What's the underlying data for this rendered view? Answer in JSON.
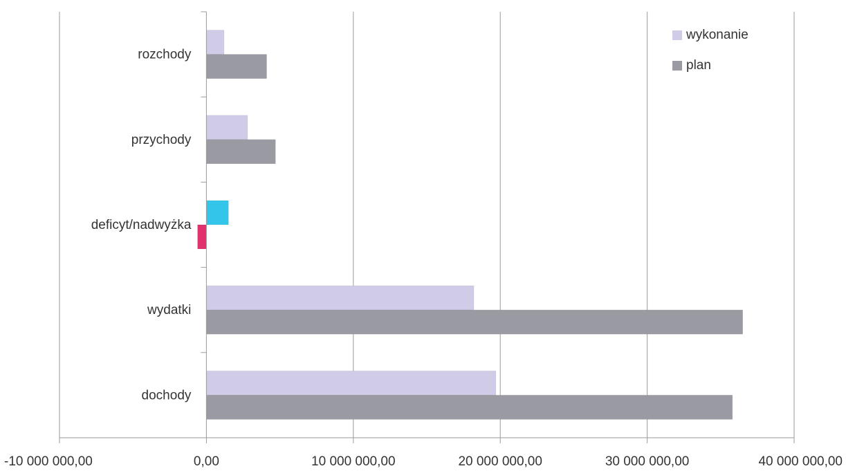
{
  "chart_data": {
    "type": "bar",
    "orientation": "horizontal",
    "categories": [
      "rozchody",
      "przychody",
      "deficyt/nadwyżka",
      "wydatki",
      "dochody"
    ],
    "series": [
      {
        "name": "wykonanie",
        "color": "#d0cce8",
        "values": [
          1200000,
          2800000,
          1500000,
          18200000,
          19700000
        ]
      },
      {
        "name": "plan",
        "color": "#9a9aa2",
        "values": [
          4100000,
          4700000,
          -600000,
          36500000,
          35800000
        ]
      }
    ],
    "special_colors": {
      "deficyt/nadwyżka": {
        "wykonanie": "#33c6ea",
        "plan": "#e0336e"
      }
    },
    "xlim": [
      -10000000,
      40000000
    ],
    "x_ticks": [
      -10000000,
      0,
      10000000,
      20000000,
      30000000,
      40000000
    ],
    "x_tick_labels": [
      "-10 000 000,00",
      "0,00",
      "10 000 000,00",
      "20 000 000,00",
      "30 000 000,00",
      "40 000 000,00"
    ],
    "title": "",
    "xlabel": "",
    "ylabel": "",
    "grid": "vertical",
    "legend_position": "top-right"
  }
}
